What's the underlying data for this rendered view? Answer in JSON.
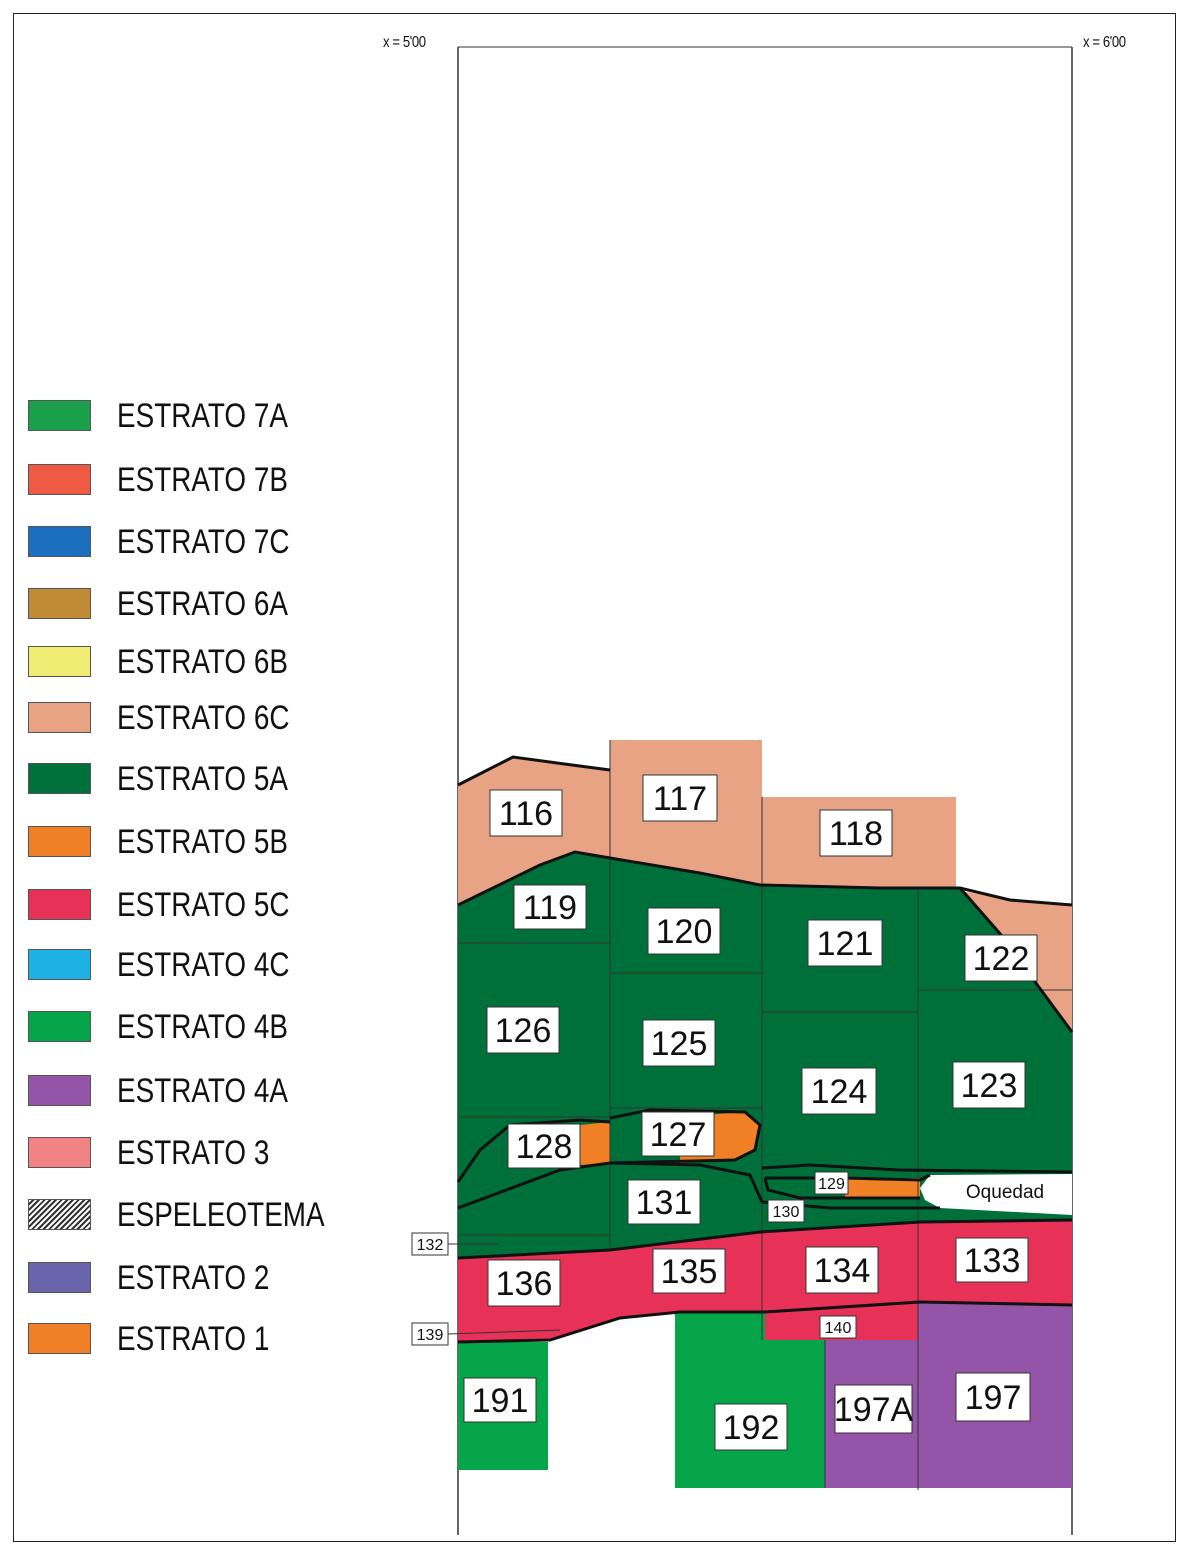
{
  "coords": {
    "left": "x = 5'00",
    "right": "x = 6'00"
  },
  "legend": [
    {
      "label": "ESTRATO 7A",
      "color": "#1aa04a"
    },
    {
      "label": "ESTRATO 7B",
      "color": "#ee5a44"
    },
    {
      "label": "ESTRATO 7C",
      "color": "#1c6fbe"
    },
    {
      "label": "ESTRATO 6A",
      "color": "#c18a35"
    },
    {
      "label": "ESTRATO 6B",
      "color": "#f1ec73"
    },
    {
      "label": "ESTRATO 6C",
      "color": "#e8a385"
    },
    {
      "label": "ESTRATO 5A",
      "color": "#00703a"
    },
    {
      "label": "ESTRATO 5B",
      "color": "#f07f26"
    },
    {
      "label": "ESTRATO 5C",
      "color": "#e83157"
    },
    {
      "label": "ESTRATO 4C",
      "color": "#1eb1e6"
    },
    {
      "label": "ESTRATO 4B",
      "color": "#06a54a"
    },
    {
      "label": "ESTRATO 4A",
      "color": "#9454a7"
    },
    {
      "label": "ESTRATO 3",
      "color": "#f18385"
    },
    {
      "label": "ESPELEOTEMA",
      "color": "hatch"
    },
    {
      "label": "ESTRATO 2",
      "color": "#6a64ad"
    },
    {
      "label": "ESTRATO 1",
      "color": "#f07f26"
    }
  ],
  "units": {
    "u116": "116",
    "u117": "117",
    "u118": "118",
    "u119": "119",
    "u120": "120",
    "u121": "121",
    "u122": "122",
    "u126": "126",
    "u125": "125",
    "u124": "124",
    "u123": "123",
    "u128": "128",
    "u127": "127",
    "u129": "129",
    "u130": "130",
    "u131": "131",
    "u132": "132",
    "oquedad": "Oquedad",
    "u136": "136",
    "u135": "135",
    "u134": "134",
    "u133": "133",
    "u139": "139",
    "u140": "140",
    "u191": "191",
    "u192": "192",
    "u197a": "197A",
    "u197": "197"
  }
}
